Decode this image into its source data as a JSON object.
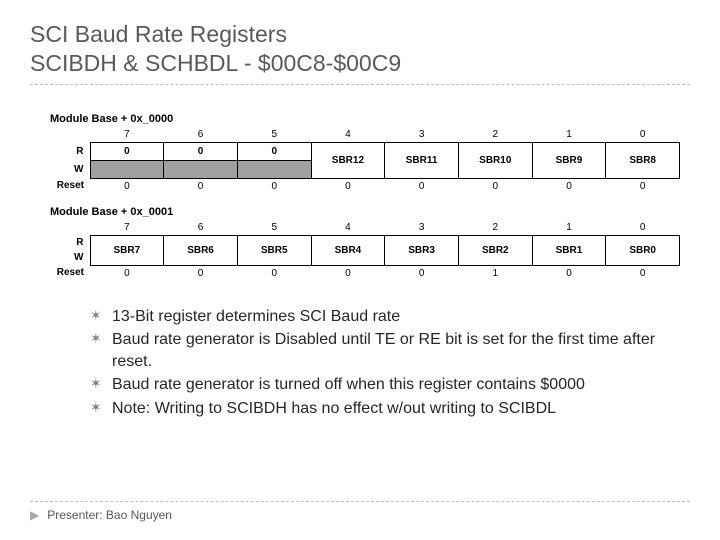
{
  "title": {
    "line1": "SCI Baud Rate Registers",
    "line2": "SCIBDH & SCHBDL - $00C8-$00C9"
  },
  "registers": [
    {
      "addr": "Module Base + 0x_0000",
      "bitnums": [
        "7",
        "6",
        "5",
        "4",
        "3",
        "2",
        "1",
        "0"
      ],
      "r_label": "R",
      "w_label": "W",
      "reset_label": "Reset",
      "row_r": [
        {
          "text": "0",
          "span": 1,
          "grey": false
        },
        {
          "text": "0",
          "span": 1,
          "grey": false
        },
        {
          "text": "0",
          "span": 1,
          "grey": false
        },
        {
          "text": "SBR12",
          "span": 2
        },
        {
          "text": "SBR11",
          "span": 2
        },
        {
          "text": "SBR10",
          "span": 2
        },
        {
          "text": "SBR9",
          "span": 2
        },
        {
          "text": "SBR8",
          "span": 2
        }
      ],
      "row_w": [
        {
          "grey": true
        },
        {
          "grey": true
        },
        {
          "grey": true
        }
      ],
      "reset": [
        "0",
        "0",
        "0",
        "0",
        "0",
        "0",
        "0",
        "0"
      ]
    },
    {
      "addr": "Module Base + 0x_0001",
      "bitnums": [
        "7",
        "6",
        "5",
        "4",
        "3",
        "2",
        "1",
        "0"
      ],
      "r_label": "R",
      "w_label": "W",
      "reset_label": "Reset",
      "row_r": [
        {
          "text": "SBR7",
          "span": 2
        },
        {
          "text": "SBR6",
          "span": 2
        },
        {
          "text": "SBR5",
          "span": 2
        },
        {
          "text": "SBR4",
          "span": 2
        },
        {
          "text": "SBR3",
          "span": 2
        },
        {
          "text": "SBR2",
          "span": 2
        },
        {
          "text": "SBR1",
          "span": 2
        },
        {
          "text": "SBR0",
          "span": 2
        }
      ],
      "row_w": [],
      "reset": [
        "0",
        "0",
        "0",
        "0",
        "0",
        "1",
        "0",
        "0"
      ]
    }
  ],
  "bullets": [
    "13-Bit register determines SCI Baud rate",
    "Baud rate generator is Disabled until TE or RE bit is set for the first time after reset.",
    "Baud rate generator is turned off when this register contains $0000",
    "Note: Writing to SCIBDH has no effect w/out writing to SCIBDL"
  ],
  "footer": {
    "presenter": "Presenter: Bao Nguyen"
  },
  "colors": {
    "title": "#595959",
    "dash": "#bfbfbf",
    "grey_cell": "#a0a0a0",
    "bullet_marker": "#808080",
    "body_text": "#262626"
  }
}
